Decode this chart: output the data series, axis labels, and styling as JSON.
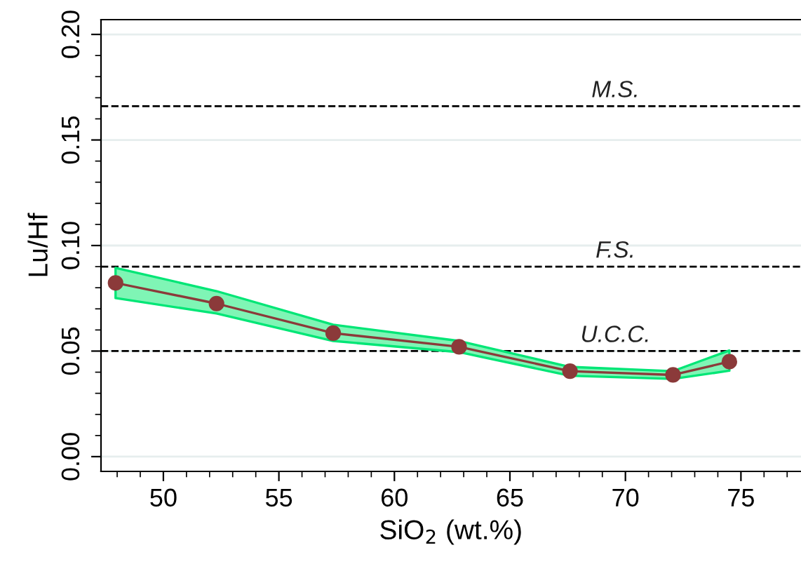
{
  "chart_data": {
    "type": "line",
    "xlabel": "SiO$_{2}$ (wt.%)",
    "ylabel": "Lu/Hf",
    "x": [
      47.93,
      52.3,
      57.35,
      62.8,
      67.6,
      72.06,
      74.5
    ],
    "series": [
      {
        "color": "#8b3a3a",
        "values": [
          0.0823,
          0.0725,
          0.0585,
          0.052,
          0.0405,
          0.0387,
          0.045
        ],
        "lower": [
          0.0751,
          0.0678,
          0.0548,
          0.0495,
          0.0383,
          0.0368,
          0.0407
        ],
        "upper": [
          0.0894,
          0.0784,
          0.0625,
          0.0548,
          0.0425,
          0.0405,
          0.0503
        ]
      }
    ],
    "marker": "circle",
    "line_style": "solid",
    "grid": "y",
    "xlim": [
      47.3,
      77.6
    ],
    "xticks": [
      50,
      55,
      60,
      65,
      70,
      75
    ],
    "ylim": [
      -0.007,
      0.207
    ],
    "yticks": [
      {
        "value": 0,
        "label": "0.00"
      },
      0.05,
      {
        "value": 0.1,
        "label": "0.10"
      },
      0.15,
      {
        "value": 0.2,
        "label": "0.20"
      }
    ],
    "ref_lines": [
      {
        "axis": "y",
        "value": 0.166,
        "label": "M.S.",
        "line_style": "dashed",
        "color": "#000000"
      },
      {
        "axis": "y",
        "value": 0.09,
        "label": "F.S.",
        "line_style": "dashed",
        "color": "#000000"
      },
      {
        "axis": "y",
        "value": 0.05,
        "label": "U.C.C.",
        "line_style": "dashed",
        "color": "#000000"
      }
    ]
  }
}
